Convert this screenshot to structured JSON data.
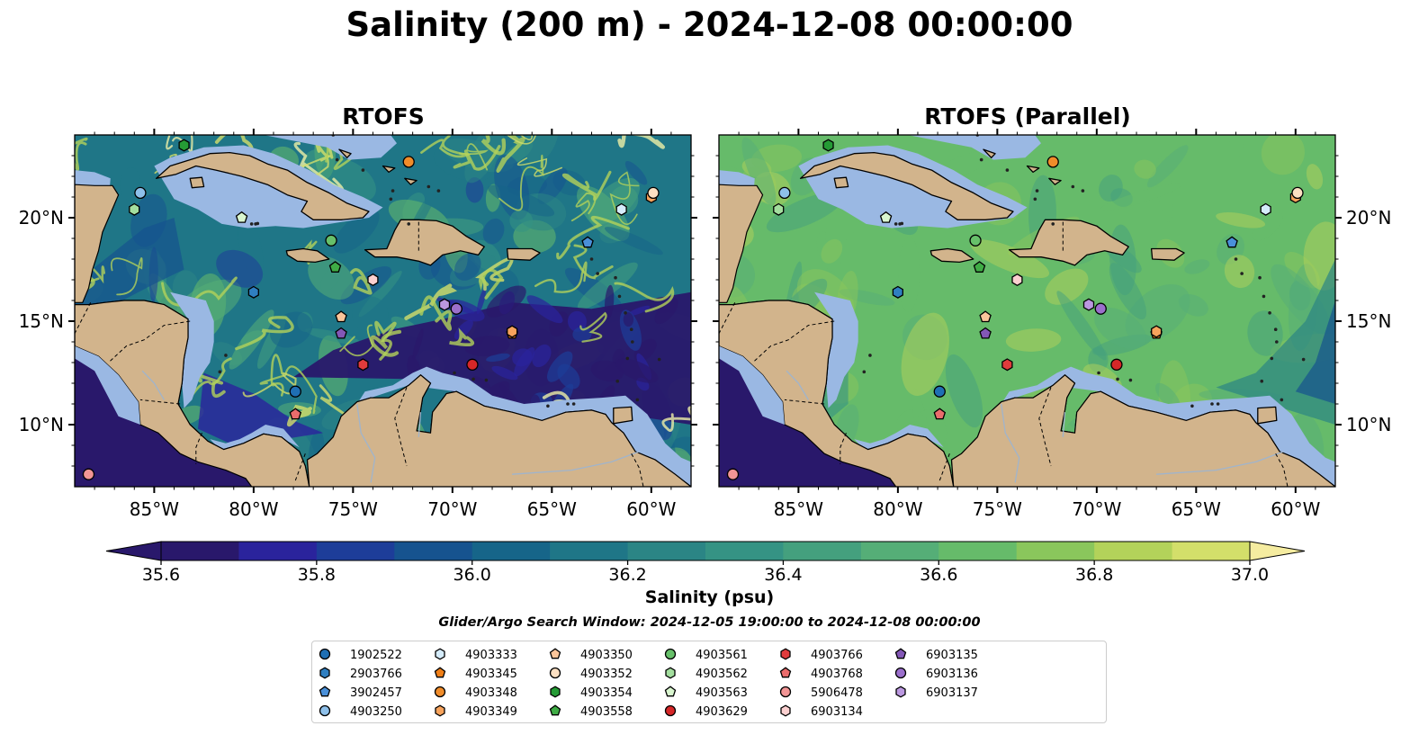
{
  "title": "Salinity (200 m) - 2024-12-08 00:00:00",
  "panels": [
    {
      "title": "RTOFS",
      "style": "eddy"
    },
    {
      "title": "RTOFS (Parallel)",
      "style": "smooth"
    }
  ],
  "map": {
    "lon_range": [
      -89,
      -58
    ],
    "lat_range": [
      7,
      24
    ],
    "x_ticks": [
      {
        "value": -85,
        "label": "85°W"
      },
      {
        "value": -80,
        "label": "80°W"
      },
      {
        "value": -75,
        "label": "75°W"
      },
      {
        "value": -70,
        "label": "70°W"
      },
      {
        "value": -65,
        "label": "65°W"
      },
      {
        "value": -60,
        "label": "60°W"
      }
    ],
    "y_ticks": [
      {
        "value": 10,
        "label": "10°N"
      },
      {
        "value": 15,
        "label": "15°N"
      },
      {
        "value": 20,
        "label": "20°N"
      }
    ],
    "colors": {
      "land": "#d2b48c",
      "shelf": "#9ab8e3",
      "river": "#a0b4cc",
      "coast": "#000000"
    }
  },
  "colorbar": {
    "label": "Salinity (psu)",
    "min": 35.6,
    "max": 37.0,
    "step": 0.1,
    "ticks": [
      {
        "value": 35.6,
        "label": "35.6"
      },
      {
        "value": 35.8,
        "label": "35.8"
      },
      {
        "value": 36.0,
        "label": "36.0"
      },
      {
        "value": 36.2,
        "label": "36.2"
      },
      {
        "value": 36.4,
        "label": "36.4"
      },
      {
        "value": 36.6,
        "label": "36.6"
      },
      {
        "value": 36.8,
        "label": "36.8"
      },
      {
        "value": 37.0,
        "label": "37.0"
      }
    ],
    "colors": [
      "#29186b",
      "#2a239c",
      "#1d3d99",
      "#16538f",
      "#166589",
      "#1f7687",
      "#2b8585",
      "#359384",
      "#44a07e",
      "#55ae77",
      "#66bb6a",
      "#8ac65c",
      "#b3d25a",
      "#d3df6a"
    ],
    "under_color": "#29186b",
    "over_color": "#f5eca0"
  },
  "window_text": "Glider/Argo Search Window: 2024-12-05 19:00:00 to 2024-12-08 00:00:00",
  "legend": [
    {
      "id": "1902522",
      "marker": "circle",
      "color": "#1f6fb4"
    },
    {
      "id": "2903766",
      "marker": "hexagon",
      "color": "#2f7fc1"
    },
    {
      "id": "3902457",
      "marker": "pentagon",
      "color": "#4a90d9"
    },
    {
      "id": "4903250",
      "marker": "circle",
      "color": "#8ec0ea"
    },
    {
      "id": "4903333",
      "marker": "hexagon",
      "color": "#d5ecfb"
    },
    {
      "id": "4903345",
      "marker": "pentagon",
      "color": "#f07f17"
    },
    {
      "id": "4903348",
      "marker": "circle",
      "color": "#f08c2a"
    },
    {
      "id": "4903349",
      "marker": "hexagon",
      "color": "#f7a35c"
    },
    {
      "id": "4903350",
      "marker": "pentagon",
      "color": "#fac59a"
    },
    {
      "id": "4903352",
      "marker": "circle",
      "color": "#fde0c2"
    },
    {
      "id": "4903354",
      "marker": "hexagon",
      "color": "#259b35"
    },
    {
      "id": "4903558",
      "marker": "pentagon",
      "color": "#3fac45"
    },
    {
      "id": "4903561",
      "marker": "circle",
      "color": "#67c06a"
    },
    {
      "id": "4903562",
      "marker": "hexagon",
      "color": "#a3de9e"
    },
    {
      "id": "4903563",
      "marker": "pentagon",
      "color": "#d9f6cf"
    },
    {
      "id": "4903629",
      "marker": "circle",
      "color": "#d62728"
    },
    {
      "id": "4903766",
      "marker": "hexagon",
      "color": "#e03b3c"
    },
    {
      "id": "4903768",
      "marker": "pentagon",
      "color": "#ea6c6c"
    },
    {
      "id": "5906478",
      "marker": "circle",
      "color": "#f29595"
    },
    {
      "id": "6903134",
      "marker": "hexagon",
      "color": "#fbd0d0"
    },
    {
      "id": "6903135",
      "marker": "pentagon",
      "color": "#8357b6"
    },
    {
      "id": "6903136",
      "marker": "circle",
      "color": "#9b6fcc"
    },
    {
      "id": "6903137",
      "marker": "hexagon",
      "color": "#bb98e0"
    }
  ],
  "platforms": [
    {
      "id": "4903354",
      "lon": -83.5,
      "lat": 23.5
    },
    {
      "id": "4903348",
      "lon": -72.2,
      "lat": 22.7
    },
    {
      "id": "4903250",
      "lon": -85.7,
      "lat": 21.2
    },
    {
      "id": "4903349",
      "lon": -60.0,
      "lat": 21.0
    },
    {
      "id": "4903352",
      "lon": -59.9,
      "lat": 21.2
    },
    {
      "id": "4903562",
      "lon": -86.0,
      "lat": 20.4
    },
    {
      "id": "4903563",
      "lon": -80.6,
      "lat": 20.0
    },
    {
      "id": "4903333",
      "lon": -61.5,
      "lat": 20.4
    },
    {
      "id": "4903561",
      "lon": -76.1,
      "lat": 18.9
    },
    {
      "id": "3902457",
      "lon": -63.2,
      "lat": 18.8
    },
    {
      "id": "4903558",
      "lon": -75.9,
      "lat": 17.6
    },
    {
      "id": "6903134",
      "lon": -74.0,
      "lat": 17.0
    },
    {
      "id": "2903766",
      "lon": -80.0,
      "lat": 16.4
    },
    {
      "id": "6903137",
      "lon": -70.4,
      "lat": 15.8
    },
    {
      "id": "6903136",
      "lon": -69.8,
      "lat": 15.6
    },
    {
      "id": "4903350",
      "lon": -75.6,
      "lat": 15.2
    },
    {
      "id": "6903135",
      "lon": -75.6,
      "lat": 14.4
    },
    {
      "id": "4903345",
      "lon": -67.0,
      "lat": 14.4
    },
    {
      "id": "4903349",
      "lon": -67.0,
      "lat": 14.5
    },
    {
      "id": "4903766",
      "lon": -74.5,
      "lat": 12.9
    },
    {
      "id": "4903629",
      "lon": -69.0,
      "lat": 12.9
    },
    {
      "id": "1902522",
      "lon": -77.9,
      "lat": 11.6
    },
    {
      "id": "4903768",
      "lon": -77.9,
      "lat": 10.5
    },
    {
      "id": "5906478",
      "lon": -88.3,
      "lat": 7.6
    }
  ]
}
